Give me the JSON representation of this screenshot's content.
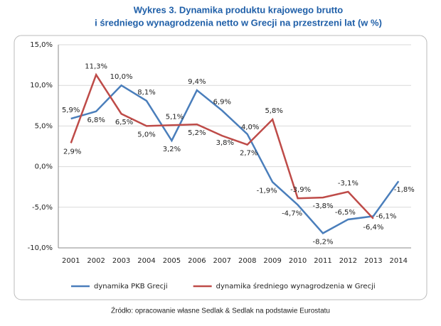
{
  "chart_data": {
    "type": "line",
    "title": "Wykres 3. Dynamika produktu krajowego brutto",
    "subtitle": "i średniego wynagrodzenia netto w Grecji na przestrzeni lat (w %)",
    "source": "Źródło: opracowanie własne Sedlak & Sedlak na podstawie Eurostatu",
    "categories": [
      "2001",
      "2002",
      "2003",
      "2004",
      "2005",
      "2006",
      "2007",
      "2008",
      "2009",
      "2010",
      "2011",
      "2012",
      "2013",
      "2014"
    ],
    "series": [
      {
        "name": "dynamika PKB Grecji",
        "color": "#4a7ebb",
        "values": [
          5.9,
          6.8,
          10.0,
          8.1,
          3.2,
          9.4,
          6.9,
          4.0,
          -1.9,
          -4.7,
          -8.2,
          -6.5,
          -6.1,
          -1.8
        ],
        "value_labels": [
          "5,9%",
          "6,8%",
          "10,0%",
          "8,1%",
          "3,2%",
          "9,4%",
          "6,9%",
          "4,0%",
          "-1,9%",
          "-4,7%",
          "-8,2%",
          "-6,5%",
          "-6,1%",
          "-1,8%"
        ]
      },
      {
        "name": "dynamika średniego wynagrodzenia w Grecji",
        "color": "#be4b48",
        "values": [
          2.9,
          11.3,
          6.5,
          5.0,
          5.1,
          5.2,
          3.8,
          2.7,
          5.8,
          -3.9,
          -3.8,
          -3.1,
          -6.4,
          null
        ],
        "value_labels": [
          "2,9%",
          "11,3%",
          "6,5%",
          "5,0%",
          "5,1%",
          "5,2%",
          "3,8%",
          "2,7%",
          "5,8%",
          "-3,9%",
          "-3,8%",
          "-3,1%",
          "-6,4%",
          null
        ]
      }
    ],
    "ylim": [
      -10,
      15
    ],
    "yticks": [
      {
        "value": -10,
        "label": "-10,0%"
      },
      {
        "value": -5,
        "label": "-5,0%"
      },
      {
        "value": 0,
        "label": "0,0%"
      },
      {
        "value": 5,
        "label": "5,0%"
      },
      {
        "value": 10,
        "label": "10,0%"
      },
      {
        "value": 15,
        "label": "15,0%"
      }
    ],
    "grid": true,
    "legend": "bottom"
  }
}
